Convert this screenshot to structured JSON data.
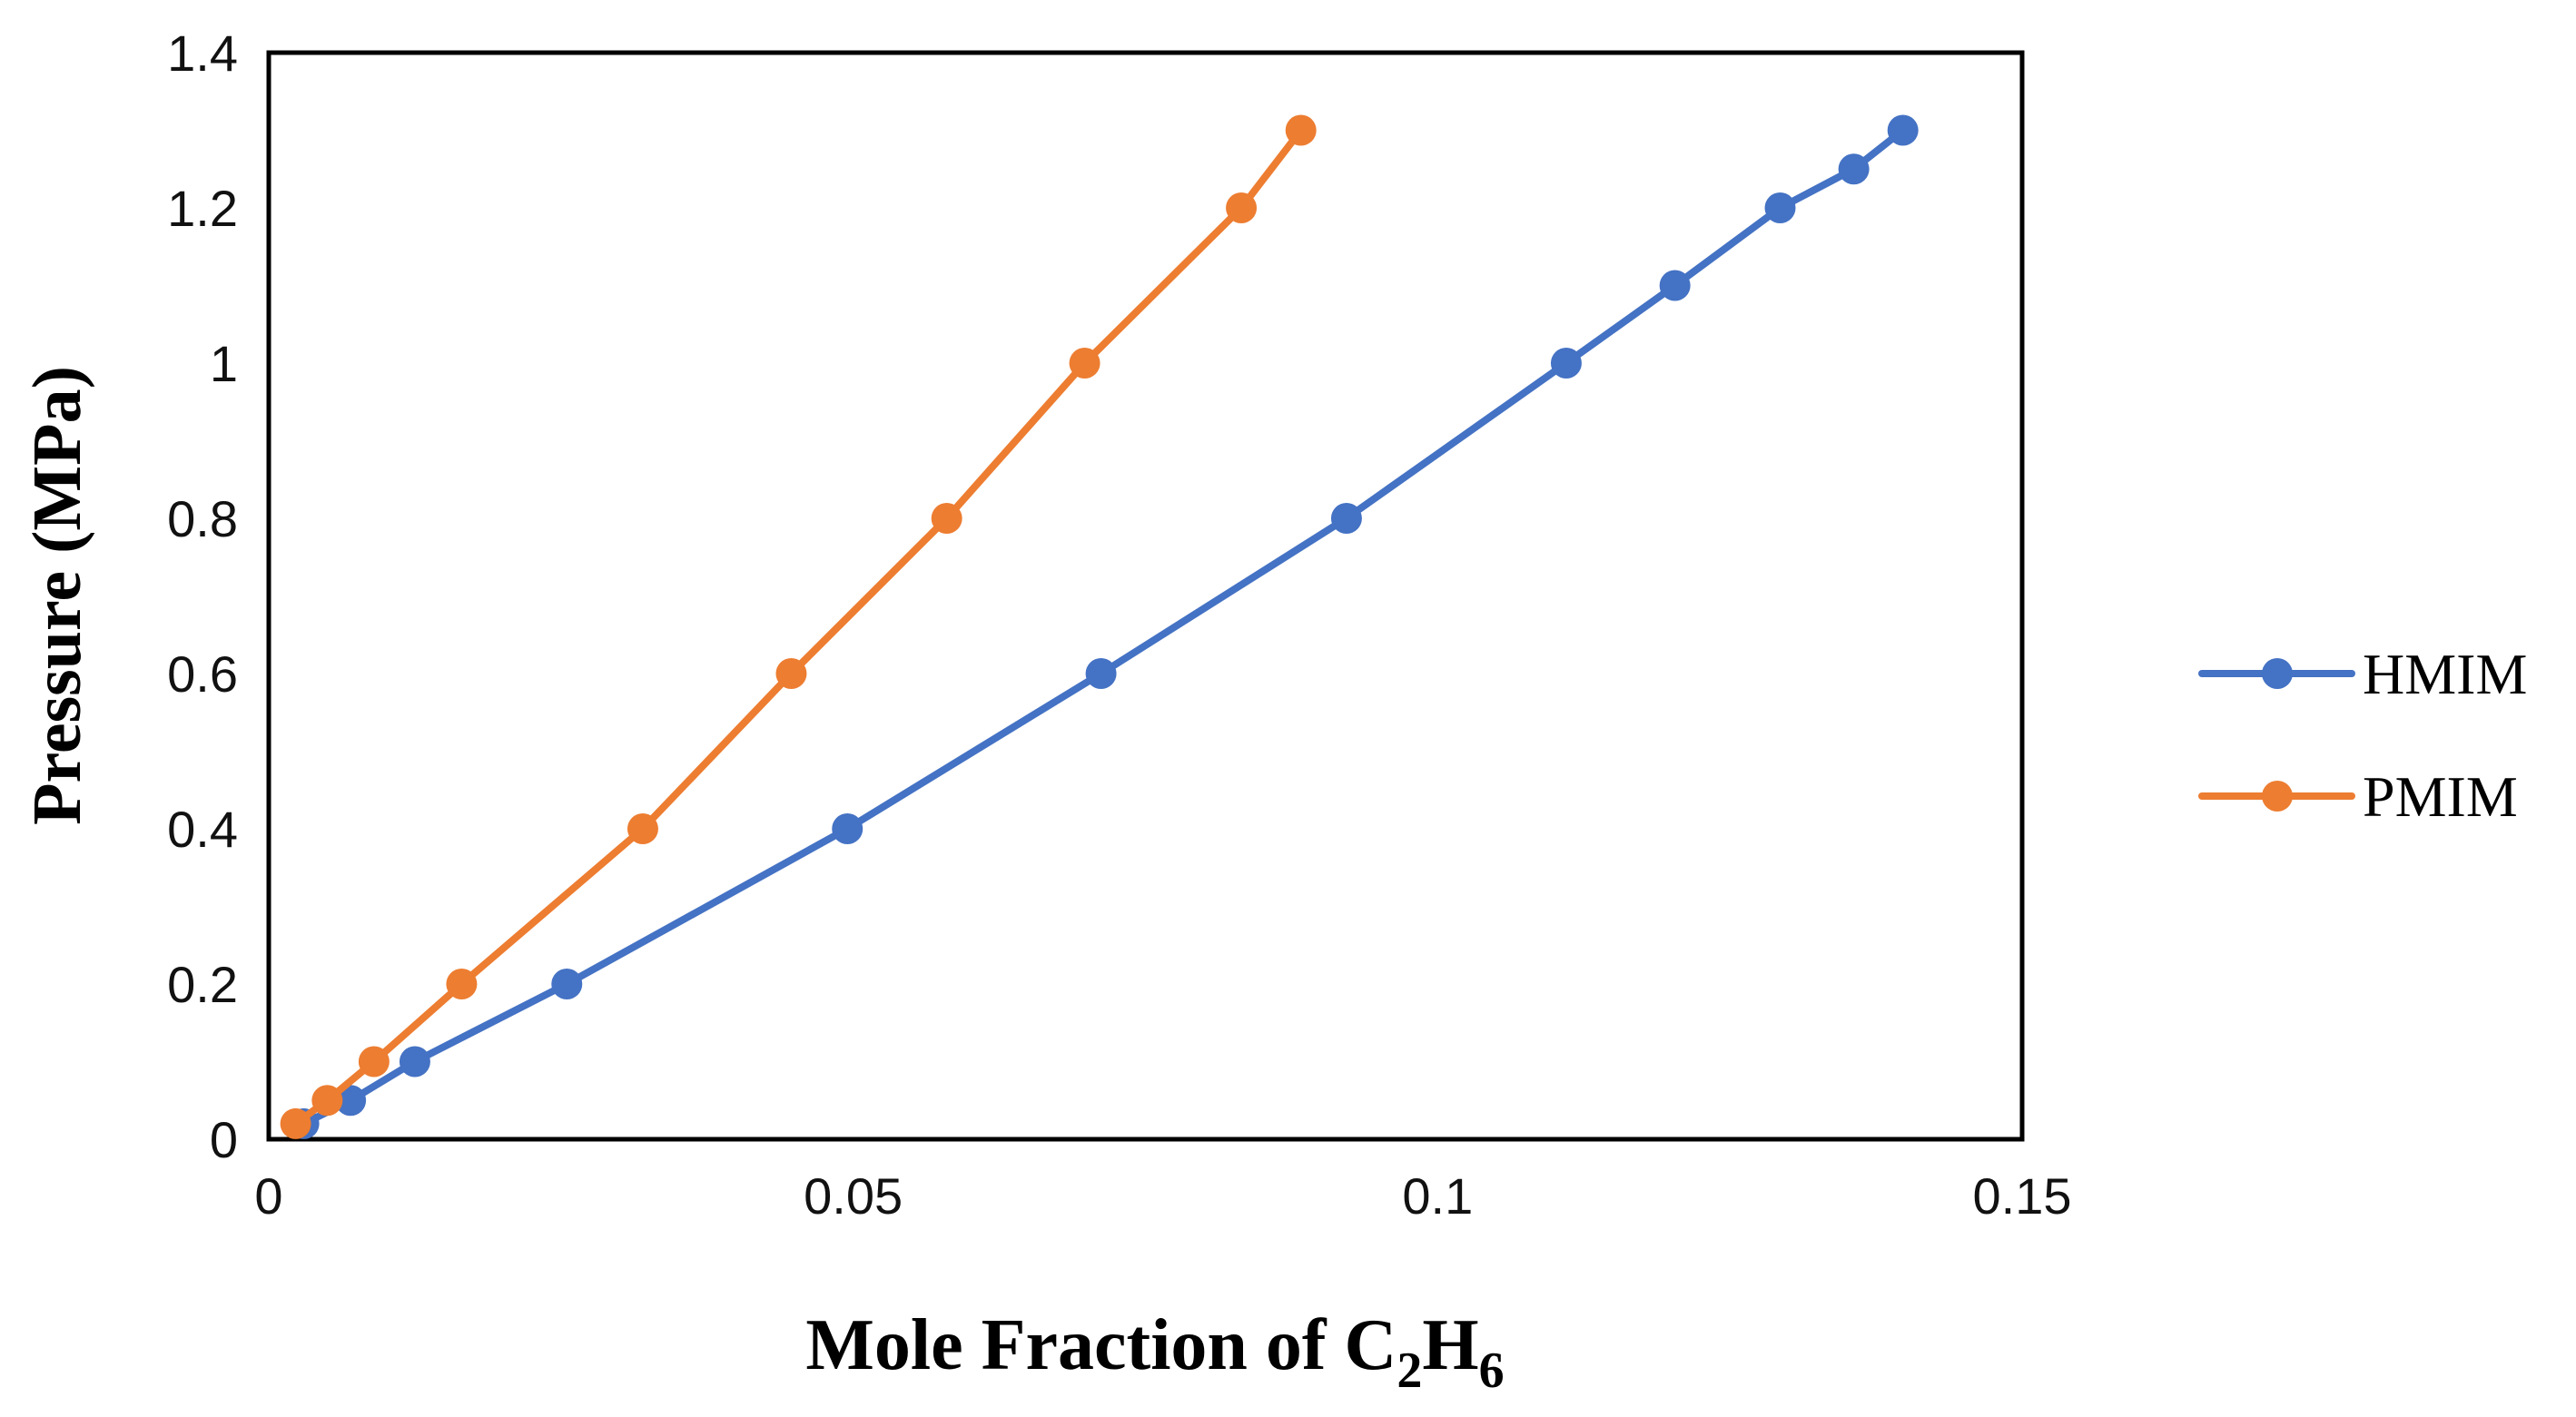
{
  "chart_data": {
    "type": "line",
    "title": "",
    "xlabel": "Mole Fraction of C",
    "xlabel_sub1": "2",
    "xlabel_mid": "H",
    "xlabel_sub2": "6",
    "ylabel": "Pressure (MPa)",
    "xlim": [
      0,
      0.15
    ],
    "ylim": [
      0,
      1.4
    ],
    "xticks": [
      0,
      0.05,
      0.1,
      0.15
    ],
    "xtick_labels": [
      "0",
      "0.05",
      "0.1",
      "0.15"
    ],
    "yticks": [
      0,
      0.2,
      0.4,
      0.6,
      0.8,
      1.0,
      1.2,
      1.4
    ],
    "ytick_labels": [
      "0",
      "0.2",
      "0.4",
      "0.6",
      "0.8",
      "1",
      "1.2",
      "1.4"
    ],
    "grid": false,
    "legend_position": "right",
    "series": [
      {
        "name": "HMIM",
        "color": "#4472C4",
        "x": [
          0.003,
          0.007,
          0.0125,
          0.0255,
          0.0495,
          0.0712,
          0.0922,
          0.111,
          0.1203,
          0.1293,
          0.1356,
          0.1398
        ],
        "y": [
          0.02,
          0.05,
          0.1,
          0.2,
          0.4,
          0.6,
          0.8,
          1.0,
          1.1,
          1.2,
          1.25,
          1.3
        ]
      },
      {
        "name": "PMIM",
        "color": "#ED7D31",
        "x": [
          0.0023,
          0.005,
          0.009,
          0.0165,
          0.032,
          0.0447,
          0.058,
          0.0698,
          0.0832,
          0.0883
        ],
        "y": [
          0.02,
          0.05,
          0.1,
          0.2,
          0.4,
          0.6,
          0.8,
          1.0,
          1.2,
          1.3
        ]
      }
    ]
  }
}
